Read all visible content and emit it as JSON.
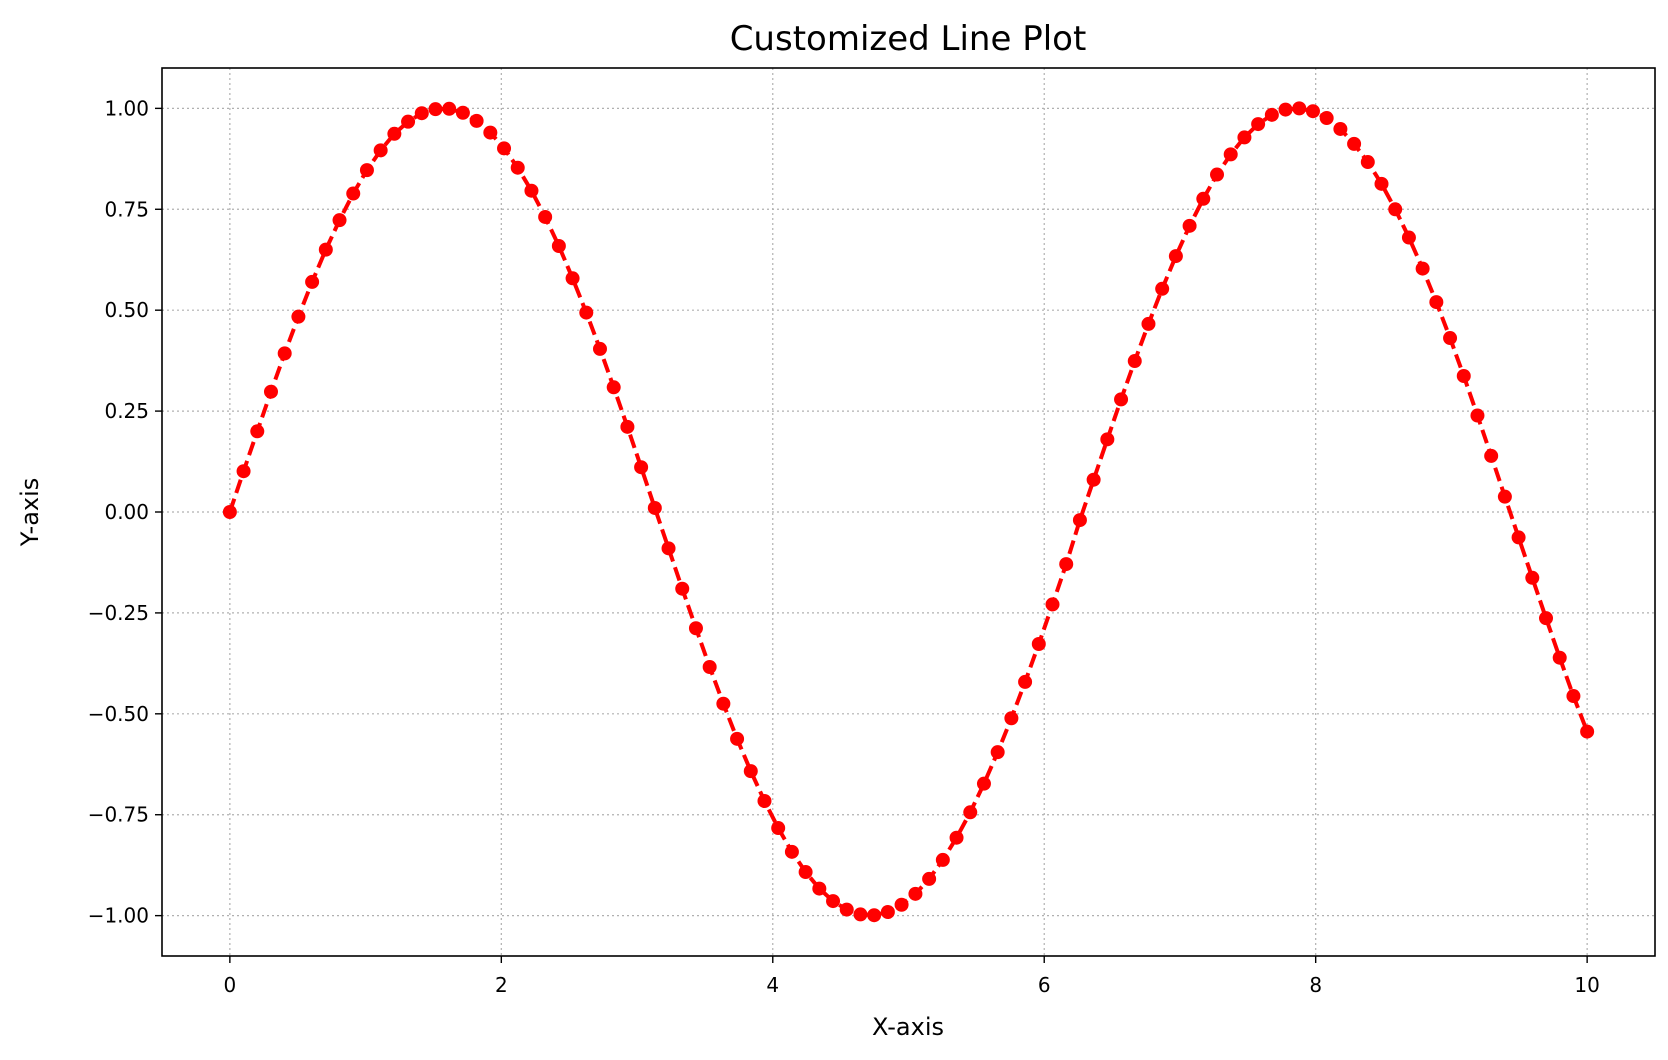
{
  "chart_data": {
    "type": "line",
    "title": "Customized Line Plot",
    "xlabel": "X-axis",
    "ylabel": "Y-axis",
    "xlim": [
      -0.5,
      10.5
    ],
    "ylim": [
      -1.1,
      1.1
    ],
    "x_ticks": [
      0,
      2,
      4,
      6,
      8,
      10
    ],
    "x_tick_labels": [
      "0",
      "2",
      "4",
      "6",
      "8",
      "10"
    ],
    "y_ticks": [
      1.0,
      0.75,
      0.5,
      0.25,
      0.0,
      -0.25,
      -0.5,
      -0.75,
      -1.0
    ],
    "y_tick_labels": [
      "1.00",
      "0.75",
      "0.50",
      "0.25",
      "0.00",
      "−0.25",
      "−0.50",
      "−0.75",
      "−1.00"
    ],
    "grid": true,
    "grid_style": "dotted",
    "line_style": "dashed",
    "marker": "circle",
    "color": "#ff0000",
    "series": [
      {
        "x": [
          0,
          0.101,
          0.202,
          0.303,
          0.404,
          0.505,
          0.606,
          0.707,
          0.808,
          0.909,
          1.01,
          1.111,
          1.212,
          1.313,
          1.414,
          1.515,
          1.616,
          1.717,
          1.818,
          1.919,
          2.02,
          2.121,
          2.222,
          2.323,
          2.424,
          2.525,
          2.626,
          2.727,
          2.828,
          2.929,
          3.03,
          3.131,
          3.232,
          3.333,
          3.434,
          3.535,
          3.636,
          3.737,
          3.838,
          3.939,
          4.04,
          4.141,
          4.242,
          4.343,
          4.444,
          4.545,
          4.646,
          4.747,
          4.848,
          4.949,
          5.051,
          5.152,
          5.253,
          5.354,
          5.455,
          5.556,
          5.657,
          5.758,
          5.859,
          5.96,
          6.061,
          6.162,
          6.263,
          6.364,
          6.465,
          6.566,
          6.667,
          6.768,
          6.869,
          6.97,
          7.071,
          7.172,
          7.273,
          7.374,
          7.475,
          7.576,
          7.677,
          7.778,
          7.879,
          7.98,
          8.081,
          8.182,
          8.283,
          8.384,
          8.485,
          8.586,
          8.687,
          8.788,
          8.889,
          8.99,
          9.091,
          9.192,
          9.293,
          9.394,
          9.495,
          9.596,
          9.697,
          9.798,
          9.899,
          10
        ],
        "values": [
          0,
          0.101,
          0.2,
          0.298,
          0.393,
          0.484,
          0.57,
          0.65,
          0.723,
          0.789,
          0.847,
          0.896,
          0.937,
          0.967,
          0.988,
          0.998,
          0.999,
          0.989,
          0.969,
          0.94,
          0.901,
          0.853,
          0.796,
          0.731,
          0.659,
          0.579,
          0.494,
          0.404,
          0.309,
          0.211,
          0.111,
          0.01,
          -0.09,
          -0.19,
          -0.288,
          -0.384,
          -0.475,
          -0.562,
          -0.642,
          -0.716,
          -0.783,
          -0.842,
          -0.892,
          -0.933,
          -0.964,
          -0.985,
          -0.997,
          -0.999,
          -0.991,
          -0.973,
          -0.946,
          -0.909,
          -0.862,
          -0.807,
          -0.744,
          -0.673,
          -0.595,
          -0.511,
          -0.421,
          -0.327,
          -0.229,
          -0.129,
          -0.02,
          0.08,
          0.18,
          0.279,
          0.374,
          0.466,
          0.553,
          0.634,
          0.709,
          0.776,
          0.836,
          0.886,
          0.928,
          0.961,
          0.984,
          0.997,
          1.0,
          0.993,
          0.976,
          0.949,
          0.912,
          0.867,
          0.813,
          0.75,
          0.68,
          0.603,
          0.52,
          0.431,
          0.337,
          0.239,
          0.139,
          0.038,
          -0.063,
          -0.163,
          -0.263,
          -0.361,
          -0.456,
          -0.544
        ]
      }
    ]
  }
}
